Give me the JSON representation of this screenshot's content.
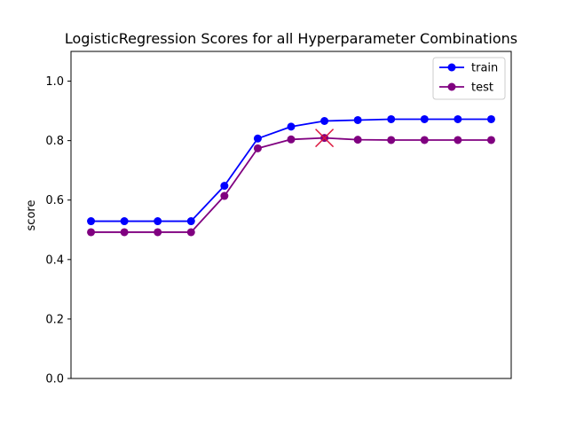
{
  "chart_data": {
    "type": "line",
    "title": "LogisticRegression Scores for all Hyperparameter Combinations",
    "xlabel": "",
    "ylabel": "score",
    "x": [
      0,
      1,
      2,
      3,
      4,
      5,
      6,
      7,
      8,
      9,
      10,
      11,
      12
    ],
    "xlim": [
      -0.6,
      12.6
    ],
    "ylim": [
      0.0,
      1.1
    ],
    "yticks": [
      0.0,
      0.2,
      0.4,
      0.6,
      0.8,
      1.0
    ],
    "ytick_labels": [
      "0.0",
      "0.2",
      "0.4",
      "0.6",
      "0.8",
      "1.0"
    ],
    "grid": false,
    "legend_position": "top-right",
    "series": [
      {
        "name": "train",
        "color": "#0000ff",
        "values": [
          0.529,
          0.529,
          0.529,
          0.529,
          0.648,
          0.807,
          0.847,
          0.866,
          0.869,
          0.872,
          0.872,
          0.872,
          0.872
        ]
      },
      {
        "name": "test",
        "color": "#800080",
        "values": [
          0.492,
          0.492,
          0.492,
          0.492,
          0.614,
          0.774,
          0.804,
          0.809,
          0.803,
          0.802,
          0.802,
          0.802,
          0.802
        ]
      }
    ],
    "best_marker": {
      "x": 7,
      "y": 0.809,
      "color": "#dc143c",
      "marker": "x"
    }
  }
}
